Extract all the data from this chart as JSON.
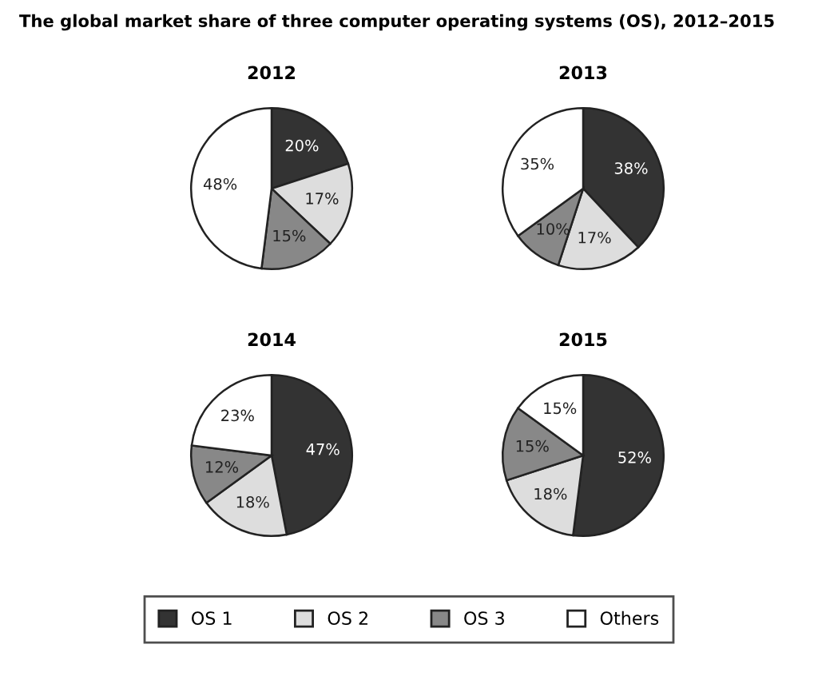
{
  "chart_data": [
    {
      "type": "other",
      "title": "The global market share of three computer operating systems (OS), 2012–2015"
    },
    {
      "type": "pie",
      "title": "2012",
      "categories": [
        "OS 1",
        "OS 2",
        "OS 3",
        "Others"
      ],
      "values": [
        20,
        17,
        15,
        48
      ],
      "value_labels": [
        "20%",
        "17%",
        "15%",
        "48%"
      ],
      "colors": [
        "#333333",
        "#dddddd",
        "#888888",
        "#ffffff"
      ],
      "legend": "bottom"
    },
    {
      "type": "pie",
      "title": "2013",
      "categories": [
        null,
        null,
        null,
        null
      ],
      "values": [
        38,
        17,
        10,
        35
      ],
      "value_labels": [
        "38%",
        "17%",
        "10%",
        "35%"
      ],
      "colors": [
        "#333333",
        "#dddddd",
        "#888888",
        "#ffffff"
      ]
    },
    {
      "type": "pie",
      "title": "2014",
      "categories": [
        null,
        null,
        null,
        null
      ],
      "values": [
        47,
        18,
        12,
        23
      ],
      "value_labels": [
        "47%",
        "18%",
        "12%",
        "23%"
      ],
      "colors": [
        "#333333",
        "#dddddd",
        "#888888",
        "#ffffff"
      ]
    },
    {
      "type": "pie",
      "title": "2015",
      "categories": [
        null,
        null,
        null,
        null
      ],
      "values": [
        52,
        18,
        15,
        15
      ],
      "value_labels": [
        "52%",
        "18%",
        "15%",
        "15%"
      ],
      "colors": [
        "#333333",
        "#dddddd",
        "#888888",
        "#ffffff"
      ]
    }
  ]
}
